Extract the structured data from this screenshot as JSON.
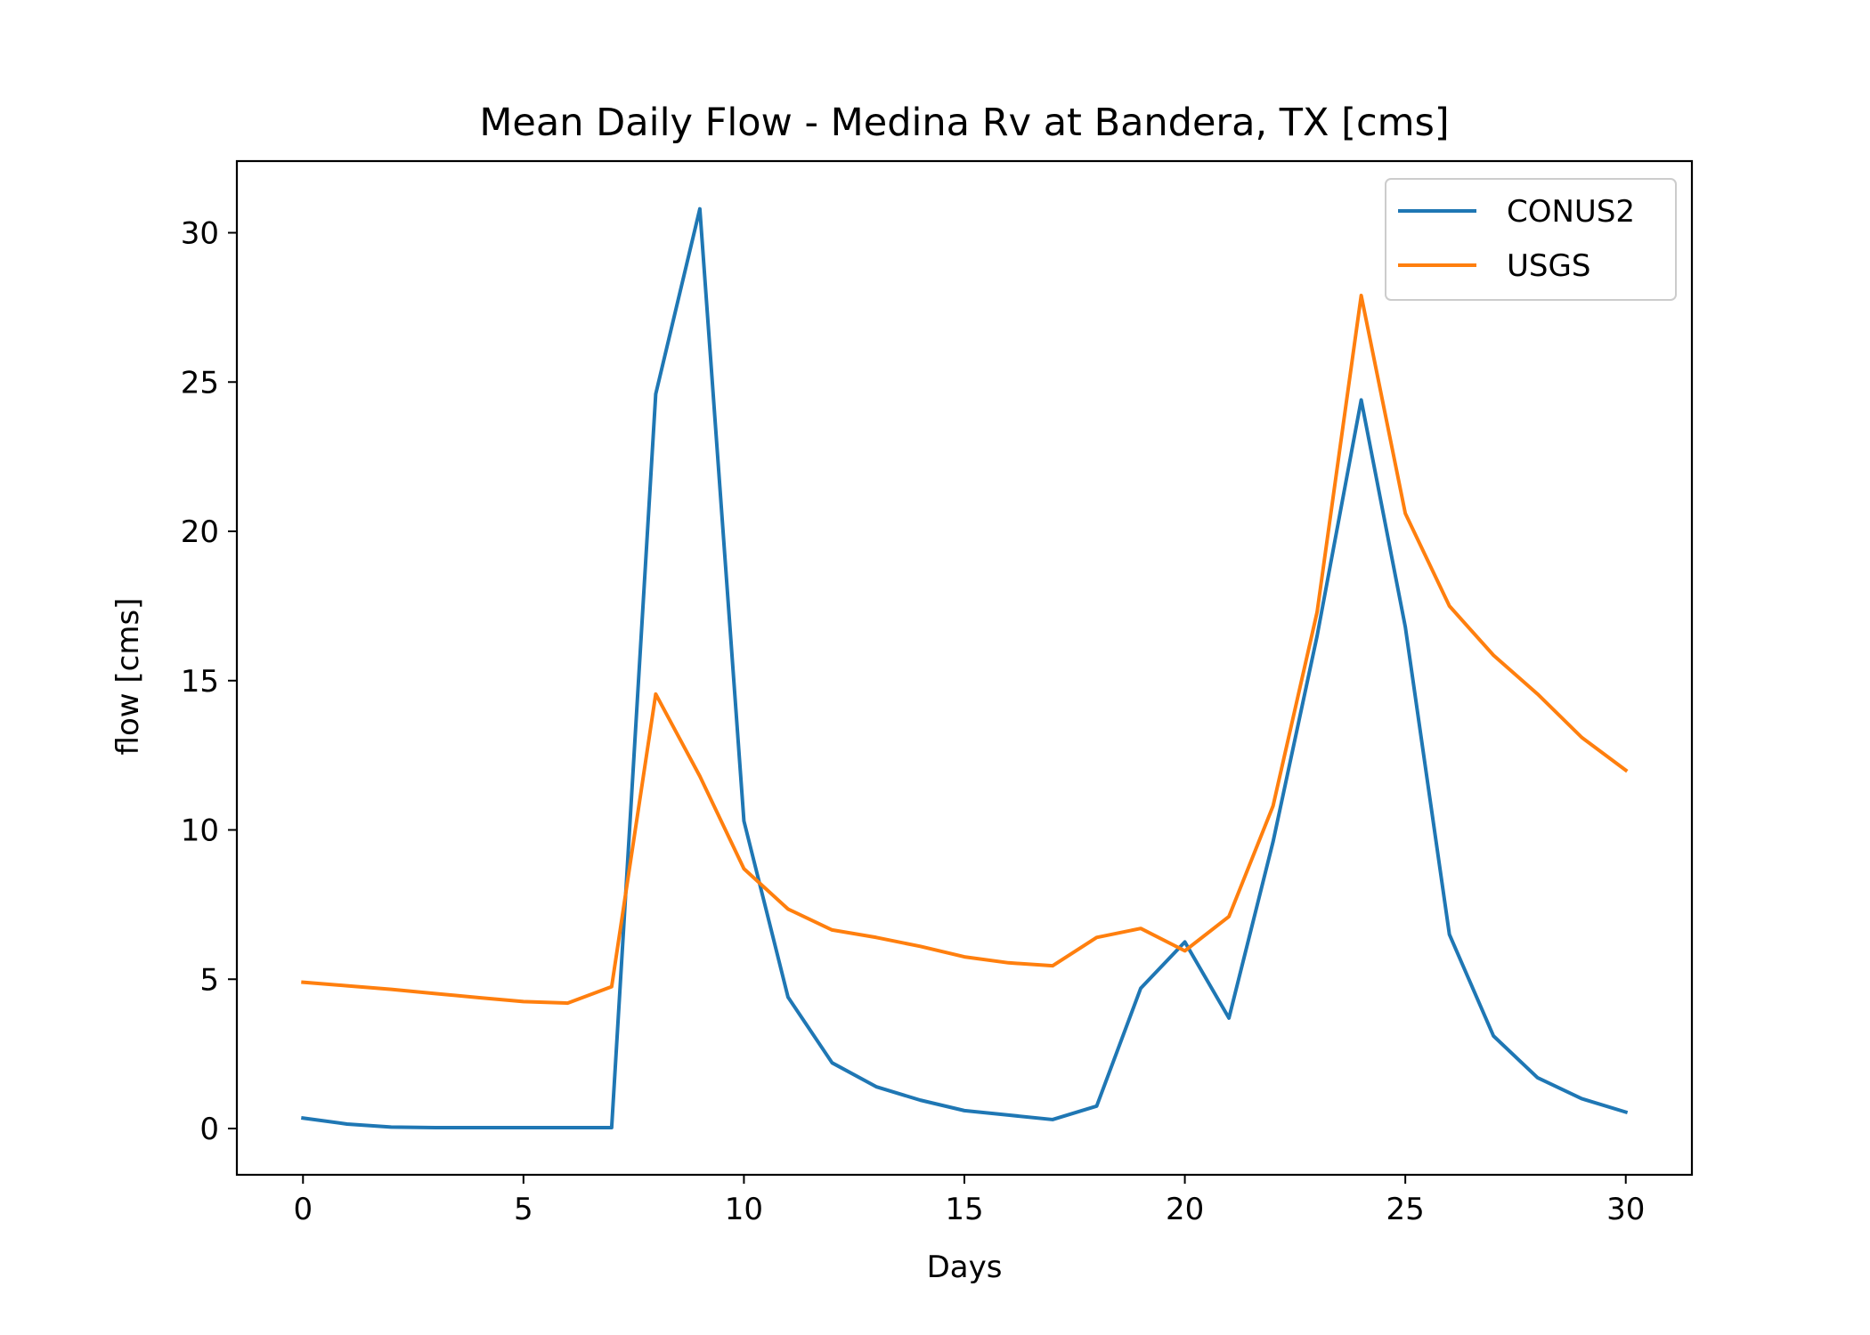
{
  "chart_data": {
    "type": "line",
    "title": "Mean Daily Flow - Medina Rv at Bandera, TX [cms]",
    "xlabel": "Days",
    "ylabel": "flow [cms]",
    "xlim": [
      -1.5,
      31.5
    ],
    "ylim": [
      -1.55,
      32.4
    ],
    "xticks": [
      0,
      5,
      10,
      15,
      20,
      25,
      30
    ],
    "yticks": [
      0,
      5,
      10,
      15,
      20,
      25,
      30
    ],
    "grid": false,
    "legend_position": "top-right",
    "x": [
      0,
      1,
      2,
      3,
      4,
      5,
      6,
      7,
      8,
      9,
      10,
      11,
      12,
      13,
      14,
      15,
      16,
      17,
      18,
      19,
      20,
      21,
      22,
      23,
      24,
      25,
      26,
      27,
      28,
      29,
      30
    ],
    "series": [
      {
        "name": "CONUS2",
        "color": "#1f77b4",
        "values": [
          0.35,
          0.15,
          0.05,
          0.03,
          0.03,
          0.03,
          0.03,
          0.03,
          24.6,
          30.8,
          10.3,
          4.4,
          2.2,
          1.4,
          0.95,
          0.6,
          0.45,
          0.3,
          0.75,
          4.7,
          6.25,
          3.7,
          9.6,
          16.5,
          24.4,
          16.8,
          6.5,
          3.1,
          1.7,
          1.0,
          0.55
        ]
      },
      {
        "name": "USGS",
        "color": "#ff7f0e",
        "values": [
          4.9,
          4.78,
          4.66,
          4.52,
          4.38,
          4.25,
          4.2,
          4.75,
          14.55,
          11.8,
          8.7,
          7.35,
          6.65,
          6.4,
          6.1,
          5.75,
          5.55,
          5.45,
          6.4,
          6.7,
          5.95,
          7.1,
          10.8,
          17.3,
          27.9,
          20.6,
          17.5,
          15.85,
          14.55,
          13.1,
          12.0
        ]
      }
    ]
  }
}
